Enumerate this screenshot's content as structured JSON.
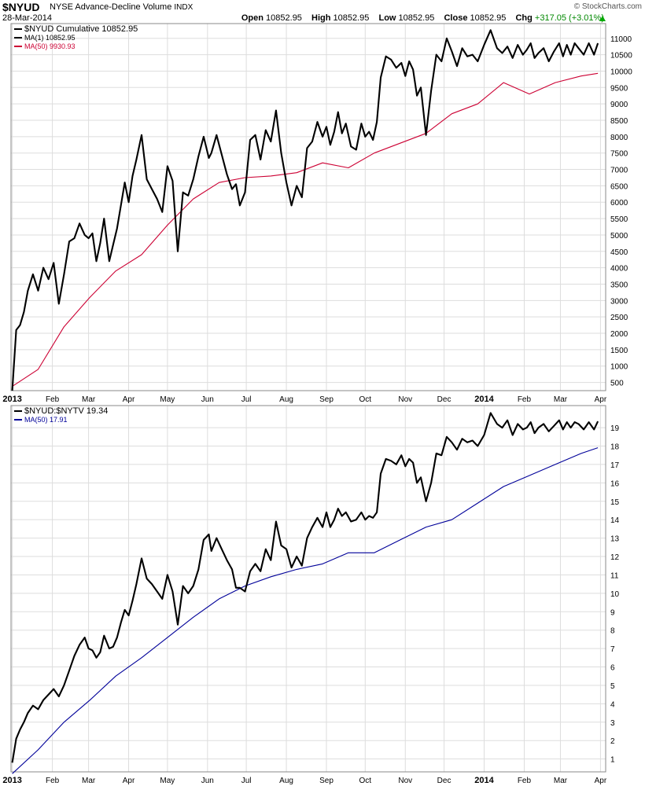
{
  "header": {
    "symbol": "$NYUD",
    "name": "NYSE Advance-Decline Volume",
    "exchange": "INDX",
    "date": "28-Mar-2014",
    "open_label": "Open",
    "open": "10852.95",
    "high_label": "High",
    "high": "10852.95",
    "low_label": "Low",
    "low": "10852.95",
    "close_label": "Close",
    "close": "10852.95",
    "chg_label": "Chg",
    "chg": "+317.05 (+3.01%)",
    "logo": "© StockCharts.com"
  },
  "colors": {
    "price": "#000000",
    "ma_top": "#cc0033",
    "ma_bottom": "#000099",
    "grid": "#dddddd"
  },
  "chart_data": [
    {
      "type": "line",
      "legend": [
        {
          "label": "$NYUD Cumulative 10852.95",
          "color": "#000000"
        },
        {
          "label": "MA(1) 10852.95",
          "color": "#000000"
        },
        {
          "label": "MA(50) 9930.93",
          "color": "#cc0033"
        }
      ],
      "ylim": [
        250,
        11450
      ],
      "yticks": [
        500,
        1000,
        1500,
        2000,
        2500,
        3000,
        3500,
        4000,
        4500,
        5000,
        5500,
        6000,
        6500,
        7000,
        7500,
        8000,
        8500,
        9000,
        9500,
        10000,
        10500,
        11000
      ],
      "x_tick_labels": [
        "2013",
        "Feb",
        "Mar",
        "Apr",
        "May",
        "Jun",
        "Jul",
        "Aug",
        "Sep",
        "Oct",
        "Nov",
        "Dec",
        "2014",
        "Feb",
        "Mar",
        "Apr"
      ],
      "x_tick_days": [
        0,
        31,
        59,
        90,
        120,
        151,
        181,
        212,
        243,
        273,
        304,
        334,
        365,
        396,
        424,
        455
      ],
      "x_range": [
        -1,
        459
      ],
      "series": [
        {
          "name": "$NYUD Cumulative",
          "x": [
            0,
            3,
            6,
            9,
            12,
            16,
            20,
            24,
            28,
            32,
            36,
            40,
            44,
            48,
            52,
            56,
            59,
            62,
            65,
            68,
            71,
            75,
            78,
            81,
            84,
            87,
            90,
            93,
            96,
            100,
            104,
            108,
            112,
            116,
            120,
            124,
            128,
            132,
            136,
            140,
            144,
            148,
            152,
            154,
            158,
            162,
            166,
            170,
            173,
            176,
            180,
            184,
            188,
            192,
            196,
            200,
            204,
            208,
            212,
            216,
            220,
            224,
            228,
            232,
            236,
            240,
            243,
            246,
            249,
            252,
            255,
            258,
            262,
            266,
            270,
            273,
            276,
            279,
            282,
            285,
            289,
            293,
            297,
            301,
            304,
            307,
            310,
            313,
            316,
            320,
            324,
            328,
            332,
            336,
            340,
            344,
            348,
            352,
            356,
            360,
            365,
            370,
            375,
            379,
            383,
            387,
            391,
            395,
            398,
            401,
            404,
            407,
            411,
            415,
            419,
            423,
            426,
            429,
            432,
            435,
            438,
            442,
            446,
            450,
            453
          ],
          "y": [
            250,
            2100,
            2250,
            2650,
            3300,
            3800,
            3300,
            4000,
            3650,
            4150,
            2900,
            3800,
            4800,
            4900,
            5350,
            5000,
            4900,
            5050,
            4200,
            4750,
            5500,
            4200,
            4700,
            5200,
            5900,
            6600,
            6000,
            6800,
            7300,
            8050,
            6700,
            6400,
            6100,
            5700,
            7100,
            6650,
            4500,
            6300,
            6200,
            6700,
            7400,
            8000,
            7350,
            7500,
            8050,
            7450,
            6850,
            6400,
            6550,
            5900,
            6300,
            7900,
            8050,
            7300,
            8200,
            7850,
            8800,
            7500,
            6600,
            5900,
            6500,
            6150,
            7650,
            7850,
            8450,
            8000,
            8300,
            7750,
            8150,
            8750,
            8100,
            8400,
            7700,
            7600,
            8400,
            8000,
            8150,
            7900,
            8450,
            9800,
            10450,
            10350,
            10100,
            10250,
            9850,
            10300,
            10050,
            9250,
            9500,
            8050,
            9400,
            10500,
            10300,
            11000,
            10600,
            10150,
            10700,
            10450,
            10500,
            10300,
            10800,
            11250,
            10700,
            10550,
            10750,
            10400,
            10800,
            10500,
            10650,
            10850,
            10400,
            10550,
            10700,
            10300,
            10600,
            10850,
            10450,
            10800,
            10500,
            10850,
            10700,
            10500,
            10850,
            10500,
            10850
          ],
          "color": "#000000"
        },
        {
          "name": "MA(50)",
          "x": [
            0,
            20,
            40,
            60,
            80,
            100,
            120,
            140,
            160,
            180,
            200,
            220,
            240,
            260,
            280,
            300,
            320,
            340,
            360,
            380,
            400,
            420,
            440,
            453
          ],
          "y": [
            380,
            900,
            2200,
            3100,
            3900,
            4400,
            5300,
            6100,
            6600,
            6750,
            6800,
            6900,
            7200,
            7050,
            7500,
            7800,
            8100,
            8700,
            9000,
            9650,
            9300,
            9650,
            9850,
            9930.93
          ],
          "color": "#cc0033"
        }
      ]
    },
    {
      "type": "line",
      "legend": [
        {
          "label": "$NYUD:$NYTV 19.34",
          "color": "#000000"
        },
        {
          "label": "MA(50) 17.91",
          "color": "#000099"
        }
      ],
      "ylim": [
        0.3,
        20.2
      ],
      "yticks": [
        1,
        2,
        3,
        4,
        5,
        6,
        7,
        8,
        9,
        10,
        11,
        12,
        13,
        14,
        15,
        16,
        17,
        18,
        19
      ],
      "x_tick_labels": [
        "2013",
        "Feb",
        "Mar",
        "Apr",
        "May",
        "Jun",
        "Jul",
        "Aug",
        "Sep",
        "Oct",
        "Nov",
        "Dec",
        "2014",
        "Feb",
        "Mar",
        "Apr"
      ],
      "x_tick_days": [
        0,
        31,
        59,
        90,
        120,
        151,
        181,
        212,
        243,
        273,
        304,
        334,
        365,
        396,
        424,
        455
      ],
      "x_range": [
        -1,
        459
      ],
      "series": [
        {
          "name": "$NYUD:$NYTV",
          "x": [
            0,
            3,
            6,
            9,
            12,
            16,
            20,
            24,
            28,
            32,
            36,
            40,
            44,
            48,
            52,
            56,
            59,
            62,
            65,
            68,
            71,
            75,
            78,
            81,
            84,
            87,
            90,
            93,
            96,
            100,
            104,
            108,
            112,
            116,
            120,
            124,
            128,
            132,
            136,
            140,
            144,
            148,
            152,
            154,
            158,
            162,
            166,
            170,
            173,
            176,
            180,
            184,
            188,
            192,
            196,
            200,
            204,
            208,
            212,
            216,
            220,
            224,
            228,
            232,
            236,
            240,
            243,
            246,
            249,
            252,
            255,
            258,
            262,
            266,
            270,
            273,
            276,
            279,
            282,
            285,
            289,
            293,
            297,
            301,
            304,
            307,
            310,
            313,
            316,
            320,
            324,
            328,
            332,
            336,
            340,
            344,
            348,
            352,
            356,
            360,
            365,
            370,
            375,
            379,
            383,
            387,
            391,
            395,
            398,
            401,
            404,
            407,
            411,
            415,
            419,
            423,
            426,
            429,
            432,
            435,
            438,
            442,
            446,
            450,
            453
          ],
          "y": [
            0.8,
            2.1,
            2.6,
            3.0,
            3.5,
            3.9,
            3.7,
            4.2,
            4.5,
            4.8,
            4.4,
            5.0,
            5.8,
            6.6,
            7.2,
            7.6,
            7.0,
            6.9,
            6.5,
            6.8,
            7.7,
            7.0,
            7.1,
            7.6,
            8.4,
            9.1,
            8.8,
            9.6,
            10.5,
            11.9,
            10.8,
            10.5,
            10.1,
            9.7,
            11.0,
            10.1,
            8.3,
            10.4,
            10.0,
            10.4,
            11.3,
            12.9,
            13.2,
            12.3,
            13.0,
            12.4,
            11.8,
            11.3,
            10.3,
            10.3,
            10.1,
            11.2,
            11.6,
            11.2,
            12.4,
            11.8,
            13.9,
            12.6,
            12.4,
            11.4,
            12.0,
            11.5,
            13.0,
            13.6,
            14.1,
            13.6,
            14.4,
            13.6,
            14.0,
            14.6,
            14.2,
            14.4,
            13.9,
            14.0,
            14.4,
            14.0,
            14.2,
            14.1,
            14.4,
            16.5,
            17.3,
            17.2,
            17.0,
            17.5,
            16.9,
            17.3,
            17.1,
            16.0,
            16.3,
            15.0,
            16.0,
            17.6,
            17.5,
            18.5,
            18.2,
            17.8,
            18.4,
            18.2,
            18.3,
            18.0,
            18.6,
            19.8,
            19.2,
            19.0,
            19.4,
            18.6,
            19.2,
            18.9,
            19.0,
            19.3,
            18.7,
            19.0,
            19.2,
            18.8,
            19.1,
            19.4,
            18.9,
            19.3,
            19.0,
            19.3,
            19.2,
            18.9,
            19.3,
            18.9,
            19.34
          ],
          "color": "#000000"
        },
        {
          "name": "MA(50)",
          "x": [
            0,
            20,
            40,
            60,
            80,
            100,
            120,
            140,
            160,
            180,
            200,
            220,
            240,
            260,
            280,
            300,
            320,
            340,
            360,
            380,
            400,
            420,
            440,
            453
          ],
          "y": [
            0.2,
            1.5,
            3.0,
            4.2,
            5.5,
            6.5,
            7.6,
            8.7,
            9.7,
            10.4,
            10.9,
            11.3,
            11.6,
            12.2,
            12.2,
            12.9,
            13.6,
            14.0,
            14.9,
            15.8,
            16.4,
            17.0,
            17.6,
            17.91
          ],
          "color": "#000099"
        }
      ]
    }
  ]
}
